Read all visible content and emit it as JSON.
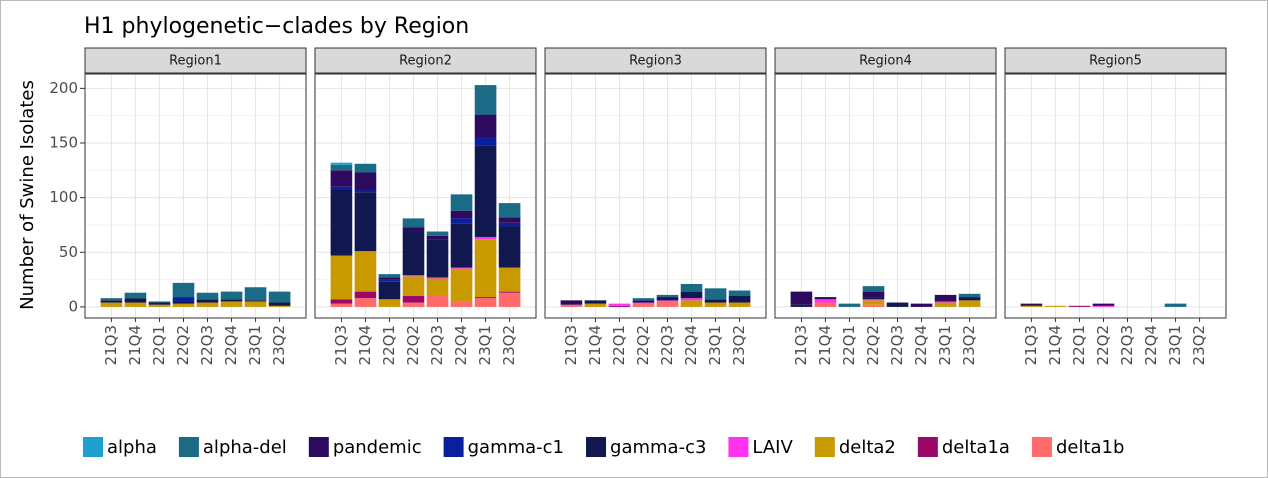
{
  "chart_data": {
    "type": "bar",
    "stacked": true,
    "title": "H1 phylogenetic−clades by Region",
    "y_label": "Number of Swine Isolates",
    "categories": [
      "21Q3",
      "21Q4",
      "22Q1",
      "22Q2",
      "22Q3",
      "22Q4",
      "23Q1",
      "23Q2"
    ],
    "ylim": [
      -10.15,
      213.15
    ],
    "yticks": [
      0,
      50,
      100,
      150,
      200
    ],
    "grid": true,
    "legend": "bottom",
    "series": [
      {
        "name": "alpha",
        "color": "#1f9fd0"
      },
      {
        "name": "alpha-del",
        "color": "#1b6a86"
      },
      {
        "name": "pandemic",
        "color": "#2e0a5e"
      },
      {
        "name": "gamma-c1",
        "color": "#0a1f9e"
      },
      {
        "name": "gamma-c3",
        "color": "#11184f"
      },
      {
        "name": "LAIV",
        "color": "#ff33ee"
      },
      {
        "name": "delta2",
        "color": "#c99a00"
      },
      {
        "name": "delta1a",
        "color": "#9b0868"
      },
      {
        "name": "delta1b",
        "color": "#ff6b6b"
      }
    ],
    "facets": [
      {
        "title": "Region1",
        "values": [
          [
            0,
            0,
            0,
            0,
            0,
            0,
            0,
            0
          ],
          [
            2,
            5,
            1,
            13,
            6,
            7,
            12,
            10
          ],
          [
            0,
            0,
            0,
            0,
            0,
            0,
            0,
            0
          ],
          [
            0,
            0,
            0,
            4,
            0,
            0,
            0,
            0
          ],
          [
            2,
            4,
            2,
            2,
            3,
            2,
            1,
            3
          ],
          [
            0,
            0,
            0,
            0,
            0,
            0,
            0,
            0
          ],
          [
            4,
            4,
            2,
            3,
            4,
            5,
            5,
            1
          ],
          [
            0,
            0,
            0,
            0,
            0,
            0,
            0,
            0
          ],
          [
            0,
            0,
            0,
            0,
            0,
            0,
            0,
            0
          ]
        ]
      },
      {
        "title": "Region2",
        "values": [
          [
            2,
            0,
            0,
            0,
            0,
            0,
            0,
            0
          ],
          [
            5,
            8,
            3,
            8,
            4,
            15,
            27,
            13
          ],
          [
            15,
            16,
            2,
            4,
            3,
            7,
            21,
            5
          ],
          [
            3,
            2,
            2,
            0,
            0,
            5,
            7,
            3
          ],
          [
            60,
            54,
            16,
            40,
            35,
            40,
            84,
            38
          ],
          [
            0,
            0,
            0,
            1,
            1,
            1,
            2,
            0
          ],
          [
            40,
            37,
            7,
            18,
            16,
            30,
            53,
            22
          ],
          [
            4,
            6,
            0,
            6,
            0,
            0,
            1,
            1
          ],
          [
            3,
            8,
            0,
            4,
            10,
            5,
            8,
            13
          ]
        ]
      },
      {
        "title": "Region3",
        "values": [
          [
            0,
            0,
            0,
            0,
            0,
            0,
            0,
            0
          ],
          [
            0,
            0,
            0,
            2,
            2,
            7,
            10,
            5
          ],
          [
            4,
            0,
            0,
            0,
            0,
            0,
            0,
            0
          ],
          [
            0,
            0,
            0,
            0,
            0,
            0,
            0,
            0
          ],
          [
            0,
            3,
            0,
            2,
            3,
            6,
            3,
            6
          ],
          [
            0,
            0,
            2,
            1,
            1,
            2,
            0,
            0
          ],
          [
            0,
            3,
            0,
            0,
            0,
            6,
            4,
            4
          ],
          [
            0,
            0,
            1,
            0,
            0,
            0,
            0,
            0
          ],
          [
            2,
            0,
            0,
            3,
            5,
            0,
            0,
            0
          ]
        ]
      },
      {
        "title": "Region4",
        "values": [
          [
            0,
            0,
            0,
            0,
            0,
            0,
            0,
            0
          ],
          [
            0,
            0,
            3,
            5,
            0,
            0,
            0,
            3
          ],
          [
            12,
            2,
            0,
            5,
            0,
            3,
            6,
            0
          ],
          [
            0,
            0,
            0,
            0,
            0,
            0,
            0,
            0
          ],
          [
            2,
            0,
            0,
            2,
            4,
            0,
            0,
            3
          ],
          [
            0,
            3,
            0,
            1,
            0,
            0,
            1,
            0
          ],
          [
            0,
            0,
            0,
            4,
            0,
            0,
            4,
            6
          ],
          [
            0,
            0,
            0,
            0,
            0,
            0,
            0,
            0
          ],
          [
            0,
            4,
            0,
            2,
            0,
            0,
            0,
            0
          ]
        ]
      },
      {
        "title": "Region5",
        "values": [
          [
            0,
            0,
            0,
            0,
            0,
            0,
            0,
            0
          ],
          [
            0,
            0,
            0,
            0,
            0,
            0,
            3,
            0
          ],
          [
            2,
            0,
            0,
            2,
            0,
            0,
            0,
            0
          ],
          [
            0,
            0,
            0,
            0,
            0,
            0,
            0,
            0
          ],
          [
            0,
            0,
            0,
            0,
            0,
            0,
            0,
            0
          ],
          [
            0,
            0,
            0,
            1,
            0,
            0,
            0,
            0
          ],
          [
            1,
            1,
            0,
            0,
            0,
            0,
            0,
            0
          ],
          [
            0,
            0,
            1,
            0,
            0,
            0,
            0,
            0
          ],
          [
            0,
            0,
            0,
            0,
            0,
            0,
            0,
            0
          ]
        ]
      }
    ]
  }
}
